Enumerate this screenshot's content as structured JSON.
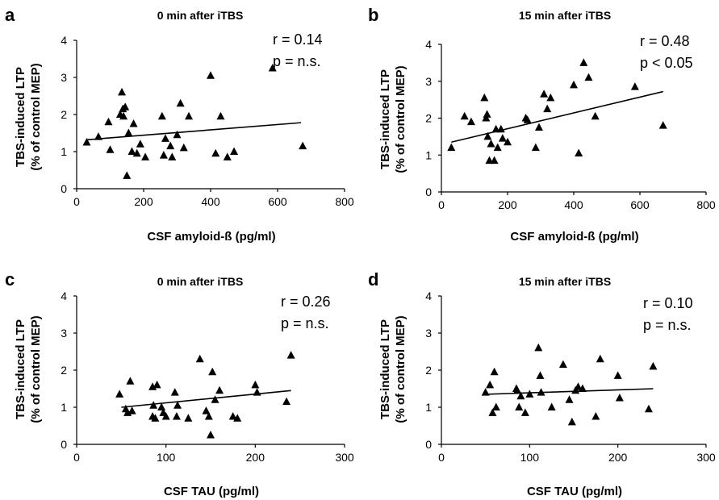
{
  "chart_data": [
    {
      "type": "scatter",
      "panel": "a",
      "title": "0 min after iTBS",
      "xlabel": "CSF amyloid-ß (pg/ml)",
      "ylabel": [
        "TBS-induced LTP",
        "(% of control MEP)"
      ],
      "xlim": [
        0,
        800
      ],
      "ylim": [
        0,
        4
      ],
      "xticks": [
        "0",
        "200",
        "400",
        "600",
        "800"
      ],
      "yticks": [
        "0",
        "1",
        "2",
        "3",
        "4"
      ],
      "stat_r": "r = 0.14",
      "stat_p": "p = n.s.",
      "trend": [
        [
          30,
          1.32
        ],
        [
          670,
          1.78
        ]
      ],
      "x": [
        30,
        65,
        95,
        100,
        130,
        135,
        138,
        140,
        145,
        150,
        155,
        165,
        170,
        180,
        190,
        205,
        255,
        260,
        265,
        280,
        285,
        300,
        310,
        320,
        335,
        400,
        415,
        430,
        450,
        470,
        585,
        675
      ],
      "y": [
        1.25,
        1.4,
        1.8,
        1.05,
        2.0,
        2.6,
        2.15,
        1.95,
        2.2,
        0.35,
        1.5,
        1.0,
        1.75,
        0.95,
        1.2,
        0.85,
        1.95,
        0.9,
        1.35,
        1.15,
        0.85,
        1.45,
        2.3,
        1.1,
        1.95,
        3.05,
        0.95,
        1.95,
        0.85,
        1.0,
        3.25,
        1.15
      ]
    },
    {
      "type": "scatter",
      "panel": "b",
      "title": "15 min after iTBS",
      "xlabel": "CSF amyloid-ß (pg/ml)",
      "ylabel": [
        "TBS-induced LTP",
        "(% of control MEP)"
      ],
      "xlim": [
        0,
        800
      ],
      "ylim": [
        0,
        4
      ],
      "xticks": [
        "0",
        "200",
        "400",
        "600",
        "800"
      ],
      "yticks": [
        "0",
        "1",
        "2",
        "3",
        "4"
      ],
      "stat_r": "r = 0.48",
      "stat_p": "p < 0.05",
      "trend": [
        [
          30,
          1.35
        ],
        [
          670,
          2.72
        ]
      ],
      "x": [
        30,
        70,
        90,
        130,
        135,
        138,
        140,
        145,
        150,
        160,
        165,
        170,
        180,
        185,
        200,
        255,
        260,
        285,
        295,
        310,
        320,
        330,
        400,
        415,
        430,
        445,
        465,
        585,
        670
      ],
      "y": [
        1.2,
        2.05,
        1.9,
        2.55,
        2.0,
        2.1,
        1.5,
        0.85,
        1.3,
        0.85,
        1.7,
        1.2,
        1.7,
        1.45,
        1.35,
        2.0,
        1.95,
        1.2,
        1.75,
        2.65,
        2.25,
        2.55,
        2.9,
        1.05,
        3.5,
        3.1,
        2.05,
        2.85,
        1.8
      ]
    },
    {
      "type": "scatter",
      "panel": "c",
      "title": "0 min after iTBS",
      "xlabel": "CSF TAU (pg/ml)",
      "ylabel": [
        "TBS-induced LTP",
        "(% of control MEP)"
      ],
      "xlim": [
        0,
        300
      ],
      "ylim": [
        0,
        4
      ],
      "xticks": [
        "0",
        "100",
        "200",
        "300"
      ],
      "yticks": [
        "0",
        "1",
        "2",
        "3",
        "4"
      ],
      "stat_r": "r = 0.26",
      "stat_p": "p = n.s.",
      "trend": [
        [
          50,
          1.0
        ],
        [
          240,
          1.45
        ]
      ],
      "x": [
        48,
        55,
        57,
        60,
        62,
        85,
        85,
        86,
        88,
        90,
        95,
        97,
        100,
        110,
        112,
        113,
        125,
        138,
        145,
        148,
        150,
        152,
        155,
        160,
        175,
        180,
        200,
        202,
        235,
        240
      ],
      "y": [
        1.35,
        0.95,
        0.85,
        1.7,
        0.9,
        1.55,
        0.75,
        1.05,
        0.7,
        1.6,
        1.0,
        0.85,
        0.75,
        1.4,
        0.75,
        1.05,
        0.7,
        2.3,
        0.9,
        0.75,
        0.25,
        1.95,
        1.2,
        1.45,
        0.75,
        0.7,
        1.6,
        1.4,
        1.15,
        2.4
      ]
    },
    {
      "type": "scatter",
      "panel": "d",
      "title": "15 min after iTBS",
      "xlabel": "CSF TAU (pg/ml)",
      "ylabel": [
        "TBS-induced LTP",
        "(% of control MEP)"
      ],
      "xlim": [
        0,
        300
      ],
      "ylim": [
        0,
        4
      ],
      "xticks": [
        "0",
        "100",
        "200",
        "300"
      ],
      "yticks": [
        "0",
        "1",
        "2",
        "3",
        "4"
      ],
      "stat_r": "r = 0.10",
      "stat_p": "p = n.s.",
      "trend": [
        [
          50,
          1.35
        ],
        [
          240,
          1.5
        ]
      ],
      "x": [
        50,
        55,
        58,
        60,
        62,
        85,
        86,
        88,
        90,
        95,
        100,
        110,
        112,
        113,
        125,
        138,
        145,
        148,
        152,
        155,
        160,
        175,
        180,
        200,
        202,
        235,
        240
      ],
      "y": [
        1.4,
        1.6,
        0.85,
        1.95,
        1.0,
        1.5,
        1.45,
        1.0,
        1.3,
        0.85,
        1.35,
        2.6,
        1.85,
        1.4,
        1.0,
        2.15,
        1.2,
        0.6,
        1.45,
        1.55,
        1.5,
        0.75,
        2.3,
        1.85,
        1.25,
        0.95,
        2.1
      ]
    }
  ]
}
